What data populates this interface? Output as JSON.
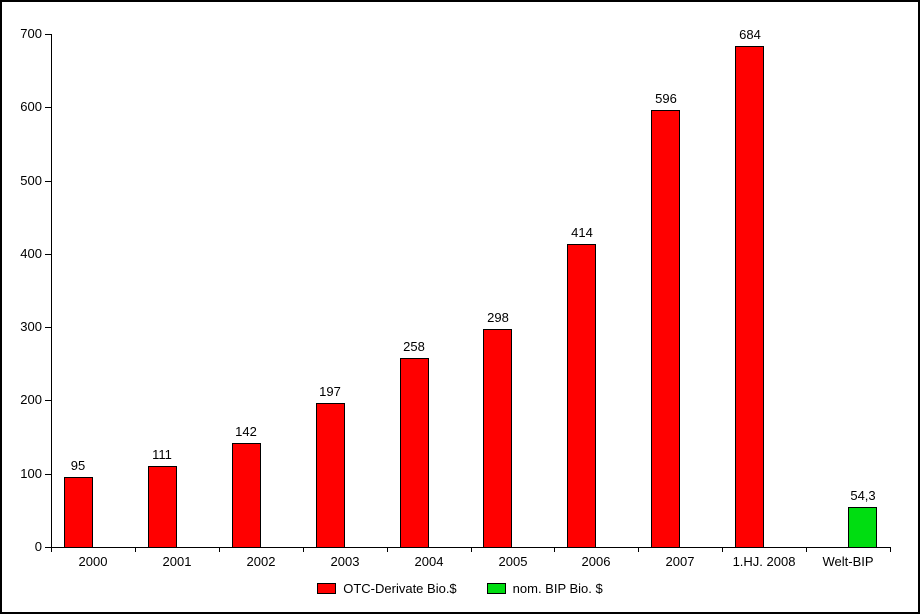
{
  "chart_data": {
    "type": "bar",
    "title": "",
    "xlabel": "",
    "ylabel": "",
    "categories": [
      "2000",
      "2001",
      "2002",
      "2003",
      "2004",
      "2005",
      "2006",
      "2007",
      "1.HJ. 2008",
      "Welt-BIP"
    ],
    "series": [
      {
        "name": "OTC-Derivate Bio.$",
        "color": "#ff0000",
        "values": [
          95,
          111,
          142,
          197,
          258,
          298,
          414,
          596,
          684,
          null
        ],
        "value_labels": [
          "95",
          "111",
          "142",
          "197",
          "258",
          "298",
          "414",
          "596",
          "684",
          null
        ]
      },
      {
        "name": "nom. BIP Bio. $",
        "color": "#00dd11",
        "values": [
          null,
          null,
          null,
          null,
          null,
          null,
          null,
          null,
          null,
          54.3
        ],
        "value_labels": [
          null,
          null,
          null,
          null,
          null,
          null,
          null,
          null,
          null,
          "54,3"
        ]
      }
    ],
    "ylim": [
      0,
      700
    ],
    "ytick_step": 100,
    "ytick_labels": [
      "0",
      "100",
      "200",
      "300",
      "400",
      "500",
      "600",
      "700"
    ],
    "grid": false,
    "legend_position": "bottom",
    "legend": [
      {
        "label": "OTC-Derivate Bio.$",
        "color": "#ff0000"
      },
      {
        "label": "nom. BIP Bio. $",
        "color": "#00dd11"
      }
    ],
    "colors": {
      "bar_border": "#000000",
      "axis": "#000000",
      "background": "#ffffff",
      "frame_border": "#000000"
    }
  }
}
